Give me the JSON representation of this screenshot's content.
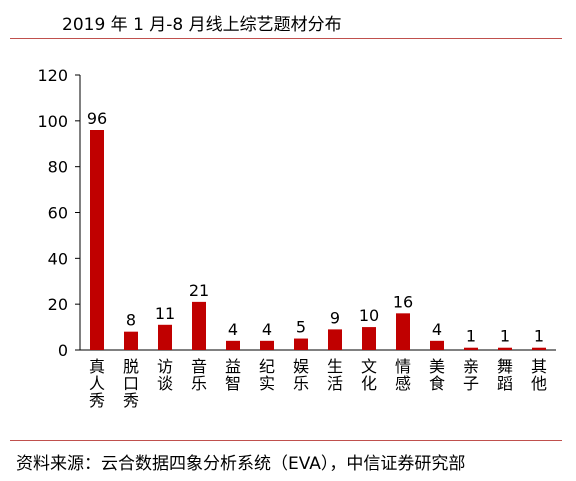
{
  "chart_data": {
    "type": "bar",
    "title": "2019 年 1 月-8 月线上综艺题材分布",
    "categories": [
      "真人秀",
      "脱口秀",
      "访谈",
      "音乐",
      "益智",
      "纪实",
      "娱乐",
      "生活",
      "文化",
      "情感",
      "美食",
      "亲子",
      "舞蹈",
      "其他"
    ],
    "values": [
      96,
      8,
      11,
      21,
      4,
      4,
      5,
      9,
      10,
      16,
      4,
      1,
      1,
      1
    ],
    "ylim": [
      0,
      120
    ],
    "yticks": [
      0,
      20,
      40,
      60,
      80,
      100,
      120
    ],
    "bar_color": "#c00000",
    "grid": false,
    "legend": "none",
    "xlabel": "",
    "ylabel": ""
  },
  "source": "资料来源：云合数据四象分析系统（EVA），中信证券研究部",
  "colors": {
    "rule": "#c0504d",
    "axis": "#000000"
  }
}
